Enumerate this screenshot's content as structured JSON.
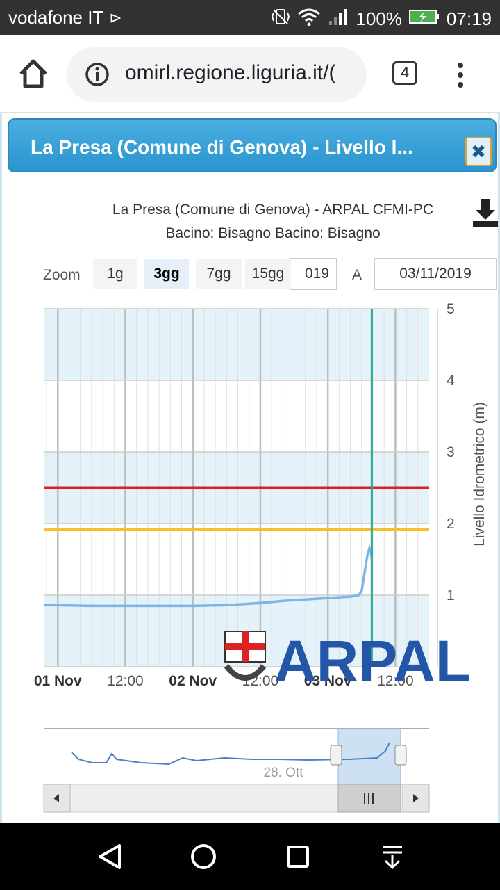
{
  "status_bar": {
    "carrier": "vodafone IT",
    "battery": "100%",
    "time": "07:19"
  },
  "browser": {
    "url": "omirl.regione.liguria.it/(",
    "tab_count": "4"
  },
  "dialog": {
    "title": "La Presa (Comune di Genova) - Livello I...",
    "close_glyph": "✖"
  },
  "chart_header": {
    "title": "La Presa (Comune di Genova) - ARPAL CFMI-PC",
    "subtitle": "Bacino: Bisagno Bacino: Bisagno"
  },
  "zoom": {
    "label": "Zoom",
    "buttons": [
      {
        "label": "1g",
        "active": false
      },
      {
        "label": "3gg",
        "active": true
      },
      {
        "label": "7gg",
        "active": false
      },
      {
        "label": "15gg",
        "active": false
      }
    ],
    "from_date": "019",
    "to_label": "A",
    "to_date": "03/11/2019"
  },
  "watermark": {
    "text": "ARPAL"
  },
  "navigator": {
    "label": "28. Ott"
  },
  "colors": {
    "band": "#e4f2f9",
    "line": "#7fb5e6",
    "alarm_red": "#e02020",
    "alarm_yellow": "#f5c02a",
    "now_line": "#2aa89a",
    "logo_blue": "#2456a8"
  },
  "chart_data": {
    "type": "line",
    "ylabel": "Livello Idrometrico (m)",
    "ylim": [
      0,
      5
    ],
    "y_ticks": [
      "1",
      "2",
      "3",
      "4",
      "5"
    ],
    "x_tick_labels": [
      {
        "label": "01 Nov",
        "bold": true,
        "hours": 0
      },
      {
        "label": "12:00",
        "bold": false,
        "hours": 12
      },
      {
        "label": "02 Nov",
        "bold": true,
        "hours": 24
      },
      {
        "label": "12:00",
        "bold": false,
        "hours": 36
      },
      {
        "label": "03 Nov",
        "bold": true,
        "hours": 48
      },
      {
        "label": "12:00",
        "bold": false,
        "hours": 60
      }
    ],
    "x_range_hours": [
      -2.5,
      66
    ],
    "thresholds": [
      {
        "value": 2.5,
        "color": "#e02020"
      },
      {
        "value": 1.92,
        "color": "#f5c02a"
      }
    ],
    "now_hours": 55.8,
    "series": [
      {
        "points": [
          [
            -2.5,
            0.86
          ],
          [
            0,
            0.86
          ],
          [
            6,
            0.85
          ],
          [
            12,
            0.85
          ],
          [
            18,
            0.85
          ],
          [
            24,
            0.85
          ],
          [
            30,
            0.86
          ],
          [
            36,
            0.89
          ],
          [
            40,
            0.92
          ],
          [
            44,
            0.94
          ],
          [
            48,
            0.96
          ],
          [
            52,
            0.98
          ],
          [
            53.5,
            1.0
          ],
          [
            54,
            1.06
          ],
          [
            54.5,
            1.3
          ],
          [
            55,
            1.55
          ],
          [
            55.4,
            1.66
          ],
          [
            55.6,
            1.62
          ],
          [
            55.8,
            1.52
          ]
        ]
      }
    ]
  }
}
